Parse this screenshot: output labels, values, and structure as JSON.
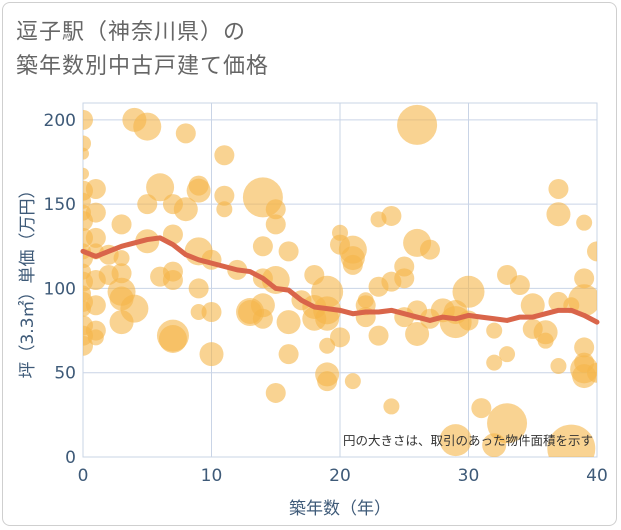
{
  "title_line1": "逗子駅（神奈川県）の",
  "title_line2": "築年数別中古戸建て価格",
  "chart_data": {
    "type": "scatter",
    "xlabel": "築年数（年）",
    "ylabel": "坪（3.3㎡）単価（万円）",
    "xlim": [
      0,
      40
    ],
    "ylim": [
      0,
      210
    ],
    "xticks": [
      0,
      10,
      20,
      30,
      40
    ],
    "yticks": [
      0,
      50,
      100,
      150,
      200
    ],
    "grid": true,
    "annotation": "円の大きさは、取引のあった物件面積を示す",
    "colors": {
      "bubble": "#f5b54a",
      "line": "#d9654a",
      "grid": "#c9d4e6",
      "axis_text": "#3e5a78"
    },
    "points": [
      {
        "x": 0,
        "y": 200,
        "s": 5
      },
      {
        "x": 0,
        "y": 186,
        "s": 4
      },
      {
        "x": 0,
        "y": 180,
        "s": 3
      },
      {
        "x": 0,
        "y": 168,
        "s": 3
      },
      {
        "x": 0,
        "y": 158,
        "s": 5
      },
      {
        "x": 0,
        "y": 152,
        "s": 4
      },
      {
        "x": 0,
        "y": 145,
        "s": 4
      },
      {
        "x": 0,
        "y": 140,
        "s": 5
      },
      {
        "x": 0,
        "y": 130,
        "s": 5
      },
      {
        "x": 0,
        "y": 122,
        "s": 4
      },
      {
        "x": 0,
        "y": 118,
        "s": 5
      },
      {
        "x": 0,
        "y": 110,
        "s": 4
      },
      {
        "x": 0,
        "y": 104,
        "s": 5
      },
      {
        "x": 0,
        "y": 97,
        "s": 4
      },
      {
        "x": 0,
        "y": 92,
        "s": 5
      },
      {
        "x": 0,
        "y": 88,
        "s": 4
      },
      {
        "x": 0,
        "y": 78,
        "s": 5
      },
      {
        "x": 0,
        "y": 72,
        "s": 5
      },
      {
        "x": 0,
        "y": 66,
        "s": 5
      },
      {
        "x": 1,
        "y": 159,
        "s": 5
      },
      {
        "x": 1,
        "y": 145,
        "s": 5
      },
      {
        "x": 1,
        "y": 130,
        "s": 5
      },
      {
        "x": 1,
        "y": 122,
        "s": 4
      },
      {
        "x": 1,
        "y": 105,
        "s": 5
      },
      {
        "x": 1,
        "y": 90,
        "s": 5
      },
      {
        "x": 1,
        "y": 75,
        "s": 5
      },
      {
        "x": 1,
        "y": 71,
        "s": 4
      },
      {
        "x": 2,
        "y": 120,
        "s": 5
      },
      {
        "x": 2,
        "y": 108,
        "s": 5
      },
      {
        "x": 3,
        "y": 138,
        "s": 5
      },
      {
        "x": 3,
        "y": 118,
        "s": 4
      },
      {
        "x": 3,
        "y": 109,
        "s": 5
      },
      {
        "x": 3,
        "y": 98,
        "s": 7
      },
      {
        "x": 3,
        "y": 94,
        "s": 6
      },
      {
        "x": 3,
        "y": 80,
        "s": 6
      },
      {
        "x": 4,
        "y": 200,
        "s": 6
      },
      {
        "x": 4,
        "y": 88,
        "s": 7
      },
      {
        "x": 5,
        "y": 196,
        "s": 7
      },
      {
        "x": 5,
        "y": 150,
        "s": 5
      },
      {
        "x": 5,
        "y": 128,
        "s": 6
      },
      {
        "x": 6,
        "y": 160,
        "s": 7
      },
      {
        "x": 6,
        "y": 107,
        "s": 5
      },
      {
        "x": 7,
        "y": 132,
        "s": 5
      },
      {
        "x": 7,
        "y": 150,
        "s": 5
      },
      {
        "x": 7,
        "y": 110,
        "s": 5
      },
      {
        "x": 7,
        "y": 105,
        "s": 5
      },
      {
        "x": 7,
        "y": 72,
        "s": 8
      },
      {
        "x": 7,
        "y": 70,
        "s": 7
      },
      {
        "x": 8,
        "y": 192,
        "s": 5
      },
      {
        "x": 8,
        "y": 147,
        "s": 6
      },
      {
        "x": 9,
        "y": 161,
        "s": 5
      },
      {
        "x": 9,
        "y": 158,
        "s": 6
      },
      {
        "x": 9,
        "y": 122,
        "s": 7
      },
      {
        "x": 9,
        "y": 100,
        "s": 5
      },
      {
        "x": 9,
        "y": 86,
        "s": 4
      },
      {
        "x": 10,
        "y": 117,
        "s": 5
      },
      {
        "x": 10,
        "y": 86,
        "s": 5
      },
      {
        "x": 10,
        "y": 61,
        "s": 6
      },
      {
        "x": 11,
        "y": 179,
        "s": 5
      },
      {
        "x": 11,
        "y": 155,
        "s": 5
      },
      {
        "x": 11,
        "y": 147,
        "s": 4
      },
      {
        "x": 12,
        "y": 111,
        "s": 5
      },
      {
        "x": 13,
        "y": 86,
        "s": 6
      },
      {
        "x": 13,
        "y": 86,
        "s": 7
      },
      {
        "x": 14,
        "y": 154,
        "s": 10
      },
      {
        "x": 14,
        "y": 125,
        "s": 5
      },
      {
        "x": 14,
        "y": 106,
        "s": 5
      },
      {
        "x": 14,
        "y": 90,
        "s": 6
      },
      {
        "x": 14,
        "y": 82,
        "s": 5
      },
      {
        "x": 15,
        "y": 147,
        "s": 5
      },
      {
        "x": 15,
        "y": 138,
        "s": 5
      },
      {
        "x": 15,
        "y": 105,
        "s": 7
      },
      {
        "x": 15,
        "y": 38,
        "s": 5
      },
      {
        "x": 16,
        "y": 122,
        "s": 5
      },
      {
        "x": 16,
        "y": 80,
        "s": 6
      },
      {
        "x": 16,
        "y": 61,
        "s": 5
      },
      {
        "x": 17,
        "y": 93,
        "s": 5
      },
      {
        "x": 18,
        "y": 108,
        "s": 5
      },
      {
        "x": 18,
        "y": 89,
        "s": 6
      },
      {
        "x": 18,
        "y": 82,
        "s": 6
      },
      {
        "x": 19,
        "y": 98,
        "s": 8
      },
      {
        "x": 19,
        "y": 87,
        "s": 7
      },
      {
        "x": 19,
        "y": 82,
        "s": 6
      },
      {
        "x": 19,
        "y": 66,
        "s": 4
      },
      {
        "x": 19,
        "y": 49,
        "s": 6
      },
      {
        "x": 19,
        "y": 45,
        "s": 5
      },
      {
        "x": 20,
        "y": 133,
        "s": 4
      },
      {
        "x": 20,
        "y": 126,
        "s": 5
      },
      {
        "x": 20,
        "y": 71,
        "s": 5
      },
      {
        "x": 21,
        "y": 123,
        "s": 7
      },
      {
        "x": 21,
        "y": 118,
        "s": 6
      },
      {
        "x": 21,
        "y": 114,
        "s": 5
      },
      {
        "x": 21,
        "y": 45,
        "s": 4
      },
      {
        "x": 22,
        "y": 93,
        "s": 4
      },
      {
        "x": 22,
        "y": 90,
        "s": 5
      },
      {
        "x": 22,
        "y": 83,
        "s": 5
      },
      {
        "x": 23,
        "y": 141,
        "s": 4
      },
      {
        "x": 23,
        "y": 101,
        "s": 5
      },
      {
        "x": 23,
        "y": 72,
        "s": 5
      },
      {
        "x": 24,
        "y": 143,
        "s": 5
      },
      {
        "x": 24,
        "y": 104,
        "s": 5
      },
      {
        "x": 24,
        "y": 30,
        "s": 4
      },
      {
        "x": 25,
        "y": 113,
        "s": 5
      },
      {
        "x": 25,
        "y": 106,
        "s": 5
      },
      {
        "x": 25,
        "y": 83,
        "s": 5
      },
      {
        "x": 26,
        "y": 197,
        "s": 10
      },
      {
        "x": 26,
        "y": 127,
        "s": 7
      },
      {
        "x": 26,
        "y": 87,
        "s": 5
      },
      {
        "x": 26,
        "y": 73,
        "s": 6
      },
      {
        "x": 27,
        "y": 123,
        "s": 5
      },
      {
        "x": 27,
        "y": 82,
        "s": 5
      },
      {
        "x": 28,
        "y": 87,
        "s": 6
      },
      {
        "x": 29,
        "y": 86,
        "s": 6
      },
      {
        "x": 29,
        "y": 80,
        "s": 8
      },
      {
        "x": 29,
        "y": 10,
        "s": 8
      },
      {
        "x": 30,
        "y": 98,
        "s": 8
      },
      {
        "x": 30,
        "y": 81,
        "s": 5
      },
      {
        "x": 31,
        "y": 29,
        "s": 5
      },
      {
        "x": 32,
        "y": 75,
        "s": 4
      },
      {
        "x": 32,
        "y": 56,
        "s": 4
      },
      {
        "x": 32,
        "y": 7,
        "s": 6
      },
      {
        "x": 33,
        "y": 108,
        "s": 5
      },
      {
        "x": 33,
        "y": 61,
        "s": 4
      },
      {
        "x": 33,
        "y": 20,
        "s": 10
      },
      {
        "x": 34,
        "y": 102,
        "s": 5
      },
      {
        "x": 35,
        "y": 90,
        "s": 6
      },
      {
        "x": 35,
        "y": 76,
        "s": 5
      },
      {
        "x": 36,
        "y": 74,
        "s": 6
      },
      {
        "x": 36,
        "y": 69,
        "s": 4
      },
      {
        "x": 37,
        "y": 159,
        "s": 5
      },
      {
        "x": 37,
        "y": 144,
        "s": 6
      },
      {
        "x": 37,
        "y": 92,
        "s": 5
      },
      {
        "x": 37,
        "y": 54,
        "s": 4
      },
      {
        "x": 38,
        "y": 5,
        "s": 12
      },
      {
        "x": 38,
        "y": 90,
        "s": 4
      },
      {
        "x": 39,
        "y": 139,
        "s": 4
      },
      {
        "x": 39,
        "y": 106,
        "s": 5
      },
      {
        "x": 39,
        "y": 93,
        "s": 8
      },
      {
        "x": 39,
        "y": 65,
        "s": 5
      },
      {
        "x": 39,
        "y": 56,
        "s": 5
      },
      {
        "x": 39,
        "y": 52,
        "s": 7
      },
      {
        "x": 39,
        "y": 48,
        "s": 6
      },
      {
        "x": 40,
        "y": 122,
        "s": 5
      },
      {
        "x": 40,
        "y": 50,
        "s": 5
      }
    ],
    "trend": {
      "x": [
        0,
        1,
        2,
        3,
        4,
        5,
        6,
        7,
        8,
        9,
        10,
        11,
        12,
        13,
        14,
        15,
        16,
        17,
        18,
        19,
        20,
        21,
        22,
        23,
        24,
        25,
        26,
        27,
        28,
        29,
        30,
        31,
        32,
        33,
        34,
        35,
        36,
        37,
        38,
        39,
        40
      ],
      "y": [
        122,
        119,
        122,
        125,
        127,
        129,
        130,
        126,
        120,
        117,
        115,
        113,
        111,
        110,
        106,
        100,
        99,
        93,
        89,
        88,
        87,
        85,
        86,
        86,
        87,
        85,
        83,
        81,
        83,
        82,
        84,
        83,
        82,
        81,
        83,
        83,
        85,
        87,
        87,
        84,
        80
      ]
    }
  }
}
